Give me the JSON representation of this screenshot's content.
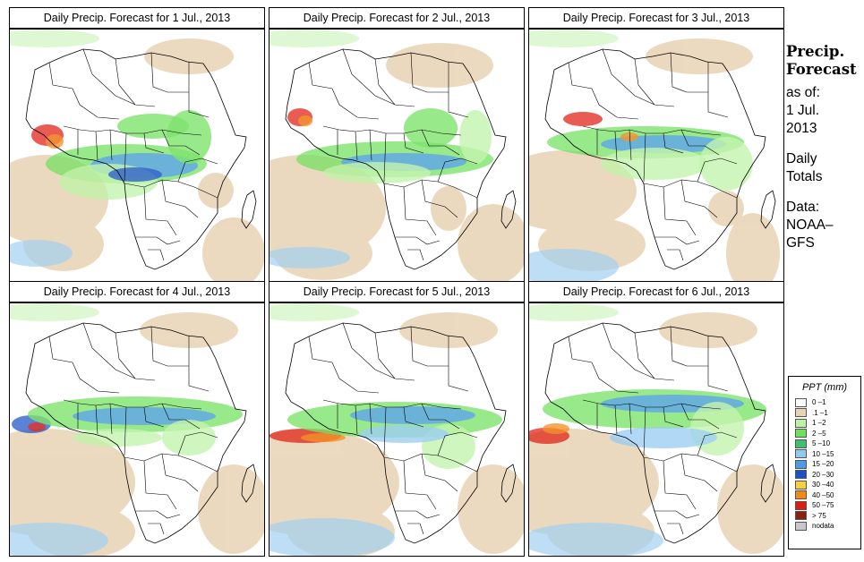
{
  "panels": [
    {
      "title": "Daily Precip. Forecast for  1 Jul., 2013"
    },
    {
      "title": "Daily Precip. Forecast for  2 Jul., 2013"
    },
    {
      "title": "Daily Precip. Forecast for  3 Jul., 2013"
    },
    {
      "title": "Daily Precip. Forecast for  4 Jul., 2013"
    },
    {
      "title": "Daily Precip. Forecast for  5 Jul., 2013"
    },
    {
      "title": "Daily Precip. Forecast for  6 Jul., 2013"
    }
  ],
  "sidebar": {
    "heading_line1": "Precip.",
    "heading_line2": "Forecast",
    "asof_line1": "as of:",
    "asof_line2": "1 Jul.",
    "asof_line3": "2013",
    "daily_line1": "Daily",
    "daily_line2": "Totals",
    "data_line1": "Data:",
    "data_line2": "NOAA–",
    "data_line3": "GFS"
  },
  "legend": {
    "title": "PPT (mm)",
    "items": [
      {
        "label": "0 –1",
        "color": "#ffffff"
      },
      {
        "label": ".1 –1",
        "color": "#e8d3b4"
      },
      {
        "label": "1 –2",
        "color": "#bdf2a6"
      },
      {
        "label": "2 –5",
        "color": "#70e05c"
      },
      {
        "label": "5 –10",
        "color": "#40bf70"
      },
      {
        "label": "10 –15",
        "color": "#92c9f0"
      },
      {
        "label": "15 –20",
        "color": "#4f9ae8"
      },
      {
        "label": "20 –30",
        "color": "#1b52c4"
      },
      {
        "label": "30 –40",
        "color": "#f7d040"
      },
      {
        "label": "40 –50",
        "color": "#f28a18"
      },
      {
        "label": "50 –75",
        "color": "#e01b10"
      },
      {
        "label": "> 75",
        "color": "#8a2010"
      },
      {
        "label": "nodata",
        "color": "#c8c8c8"
      }
    ]
  }
}
